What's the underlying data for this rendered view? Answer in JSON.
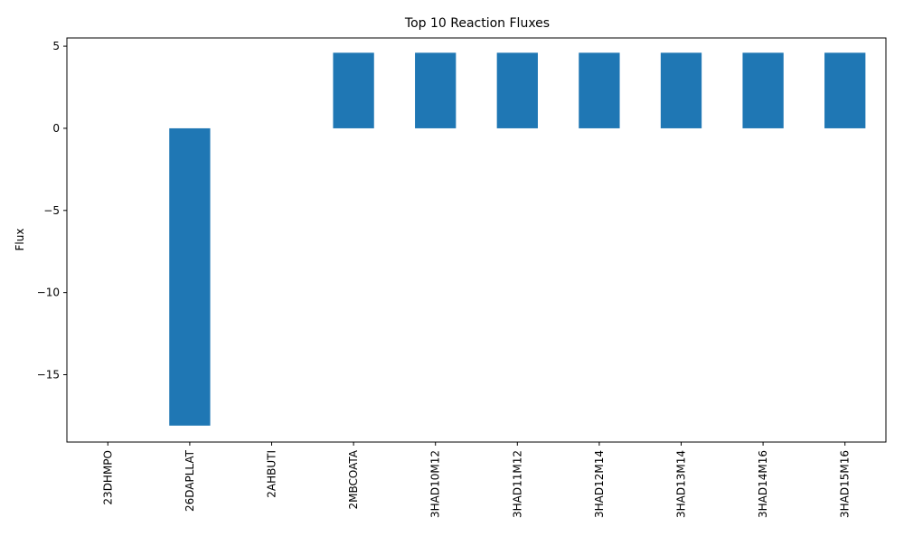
{
  "chart_data": {
    "type": "bar",
    "title": "Top 10 Reaction Fluxes",
    "xlabel": "",
    "ylabel": "Flux",
    "categories": [
      "23DHMPO",
      "26DAPLLAT",
      "2AHBUTI",
      "2MBCOATA",
      "3HAD10M12",
      "3HAD11M12",
      "3HAD12M14",
      "3HAD13M14",
      "3HAD14M16",
      "3HAD15M16"
    ],
    "values": [
      0,
      -18.1,
      0,
      4.6,
      4.6,
      4.6,
      4.6,
      4.6,
      4.6,
      4.6
    ],
    "ylim": [
      -19.1,
      5.5
    ],
    "yticks": [
      5,
      0,
      -5,
      -10,
      -15
    ],
    "ytick_labels": [
      "5",
      "0",
      "−5",
      "−10",
      "−15"
    ],
    "bar_color": "#1f77b4",
    "grid": false,
    "legend": "none"
  }
}
